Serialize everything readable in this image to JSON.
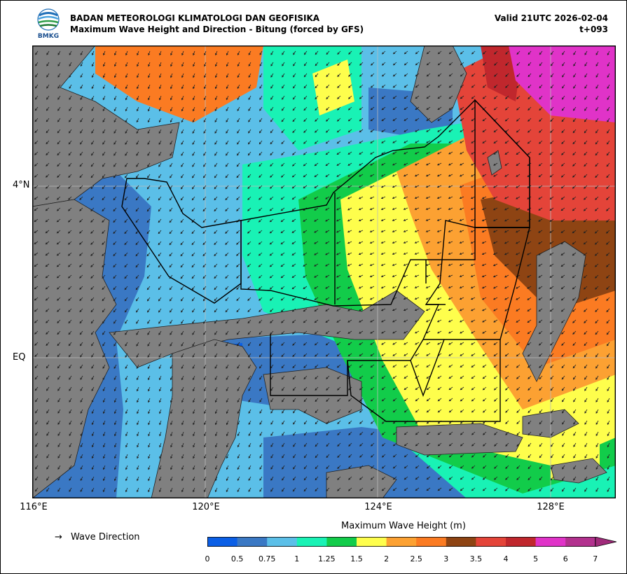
{
  "header": {
    "agency": "BADAN METEOROLOGI KLIMATOLOGI DAN GEOFISIKA",
    "subtitle": "Maximum Wave Height and Direction - Bitung (forced by GFS)",
    "valid": "Valid 21UTC 2026-02-04",
    "lead": "t+093",
    "logo_text": "BMKG"
  },
  "axes": {
    "lat_labels": [
      "4°N",
      "EQ"
    ],
    "lon_labels": [
      "116°E",
      "120°E",
      "124°E",
      "128°E"
    ]
  },
  "legend": {
    "arrow_glyph": "→",
    "label": "Wave Direction"
  },
  "colorbar": {
    "title": "Maximum Wave Height (m)",
    "ticks": [
      "0",
      "0.5",
      "0.75",
      "1",
      "1.25",
      "1.5",
      "2",
      "2.5",
      "3",
      "3.5",
      "4",
      "5",
      "6",
      "7"
    ],
    "colors": [
      "#0b5fe6",
      "#3a78c4",
      "#5bbfe8",
      "#19f2b5",
      "#12cc4a",
      "#fefe4c",
      "#fca132",
      "#fb7b22",
      "#8e4413",
      "#e44439",
      "#c0272d",
      "#e033c8",
      "#b2318e"
    ],
    "extend_color": "#a02a7a"
  },
  "colors": {
    "land": "#808080",
    "grid": "#bbbbbb",
    "boundary": "#000000"
  }
}
